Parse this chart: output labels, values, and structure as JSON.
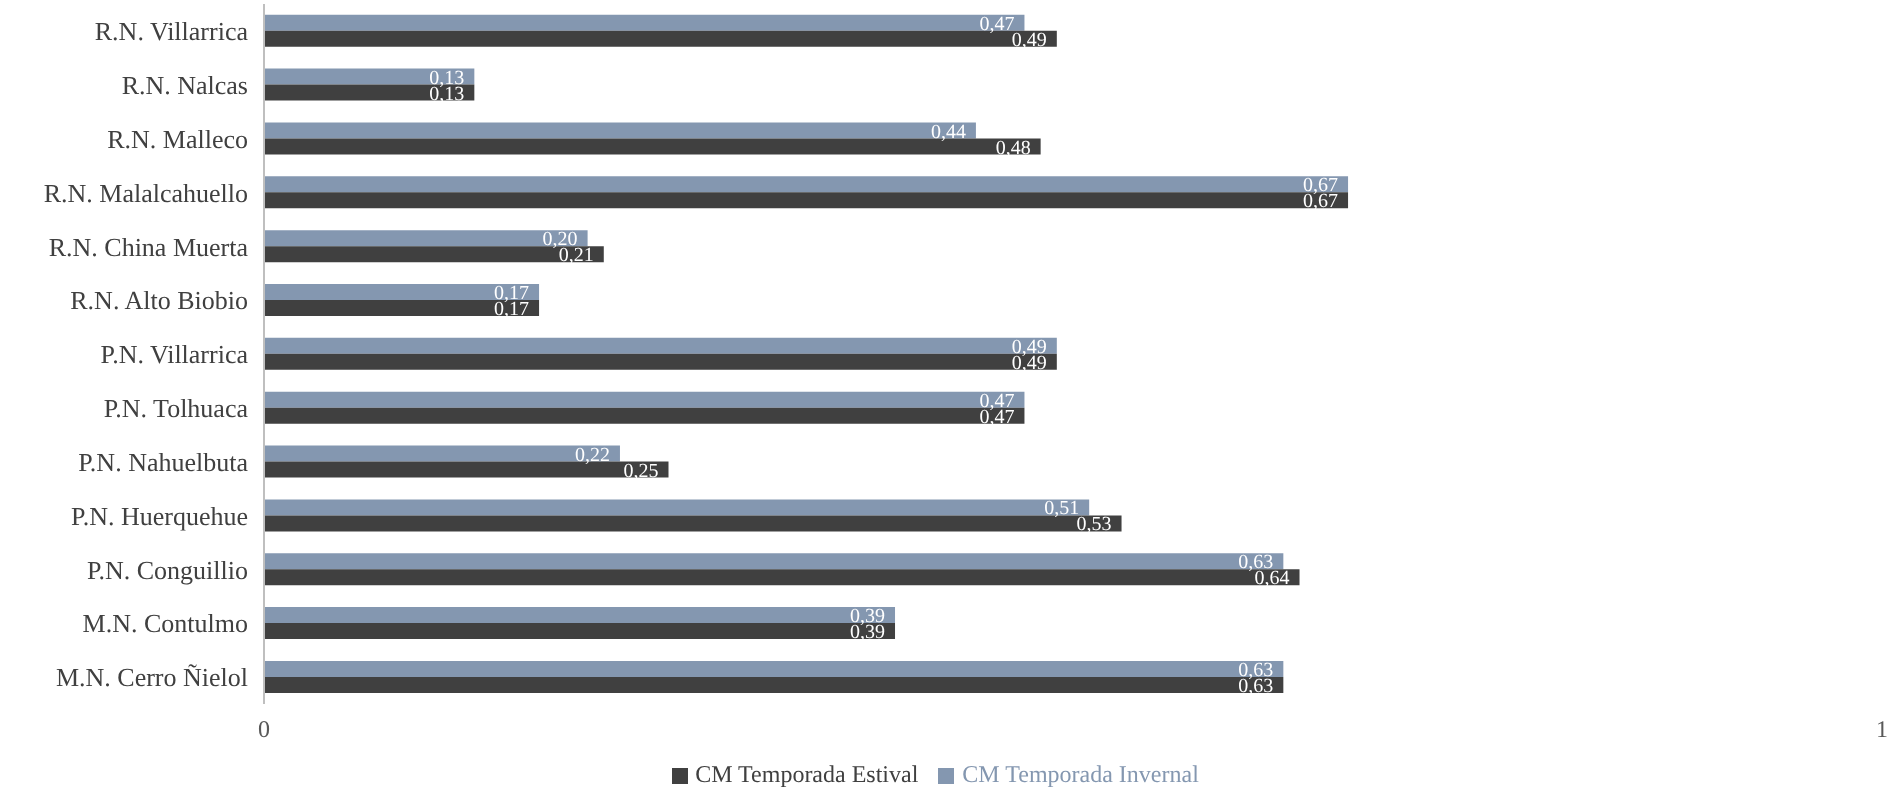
{
  "chart_data": {
    "type": "bar",
    "orientation": "horizontal",
    "categories": [
      "R.N. Villarrica",
      "R.N. Nalcas",
      "R.N. Malleco",
      "R.N. Malalcahuello",
      "R.N. China Muerta",
      "R.N. Alto Biobio",
      "P.N. Villarrica",
      "P.N. Tolhuaca",
      "P.N. Nahuelbuta",
      "P.N. Huerquehue",
      "P.N. Conguillio",
      "M.N. Contulmo",
      "M.N. Cerro Ñielol"
    ],
    "series": [
      {
        "name": "CM Temporada Invernal",
        "color": "#8497b0",
        "values": [
          0.47,
          0.13,
          0.44,
          0.67,
          0.2,
          0.17,
          0.49,
          0.47,
          0.22,
          0.51,
          0.63,
          0.39,
          0.63
        ],
        "value_labels": [
          "0,47",
          "0,13",
          "0,44",
          "0,67",
          "0,20",
          "0,17",
          "0,49",
          "0,47",
          "0,22",
          "0,51",
          "0,63",
          "0,39",
          "0,63"
        ]
      },
      {
        "name": "CM Temporada Estival",
        "color": "#404040",
        "values": [
          0.49,
          0.13,
          0.48,
          0.67,
          0.21,
          0.17,
          0.49,
          0.47,
          0.25,
          0.53,
          0.64,
          0.39,
          0.63
        ],
        "value_labels": [
          "0,49",
          "0,13",
          "0,48",
          "0,67",
          "0,21",
          "0,17",
          "0,49",
          "0,47",
          "0,25",
          "0,53",
          "0,64",
          "0,39",
          "0,63"
        ]
      }
    ],
    "xlim": [
      0,
      1
    ],
    "xticks": [
      0,
      1
    ],
    "grid": false,
    "legend": "bottom"
  }
}
